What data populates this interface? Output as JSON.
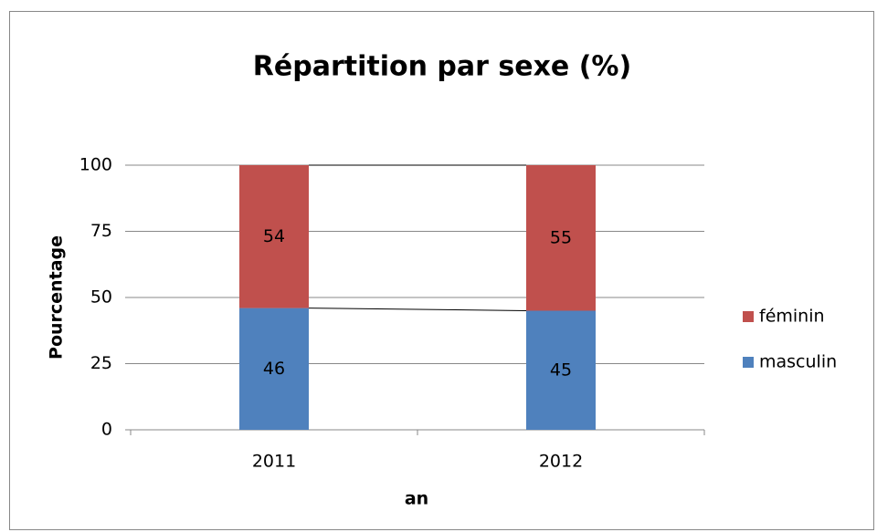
{
  "chart_data": {
    "type": "bar",
    "stacked": true,
    "title": "Répartition par sexe (%)",
    "x_label": "an",
    "y_label": "Pourcentage",
    "categories": [
      "2011",
      "2012"
    ],
    "series": [
      {
        "name": "masculin",
        "color": "#4f81bd",
        "values": [
          46,
          45
        ]
      },
      {
        "name": "féminin",
        "color": "#c0504d",
        "values": [
          54,
          55
        ]
      }
    ],
    "ylim": [
      0,
      100
    ],
    "yticks": [
      0,
      25,
      50,
      75,
      100
    ],
    "grid": true,
    "legend": "right"
  }
}
